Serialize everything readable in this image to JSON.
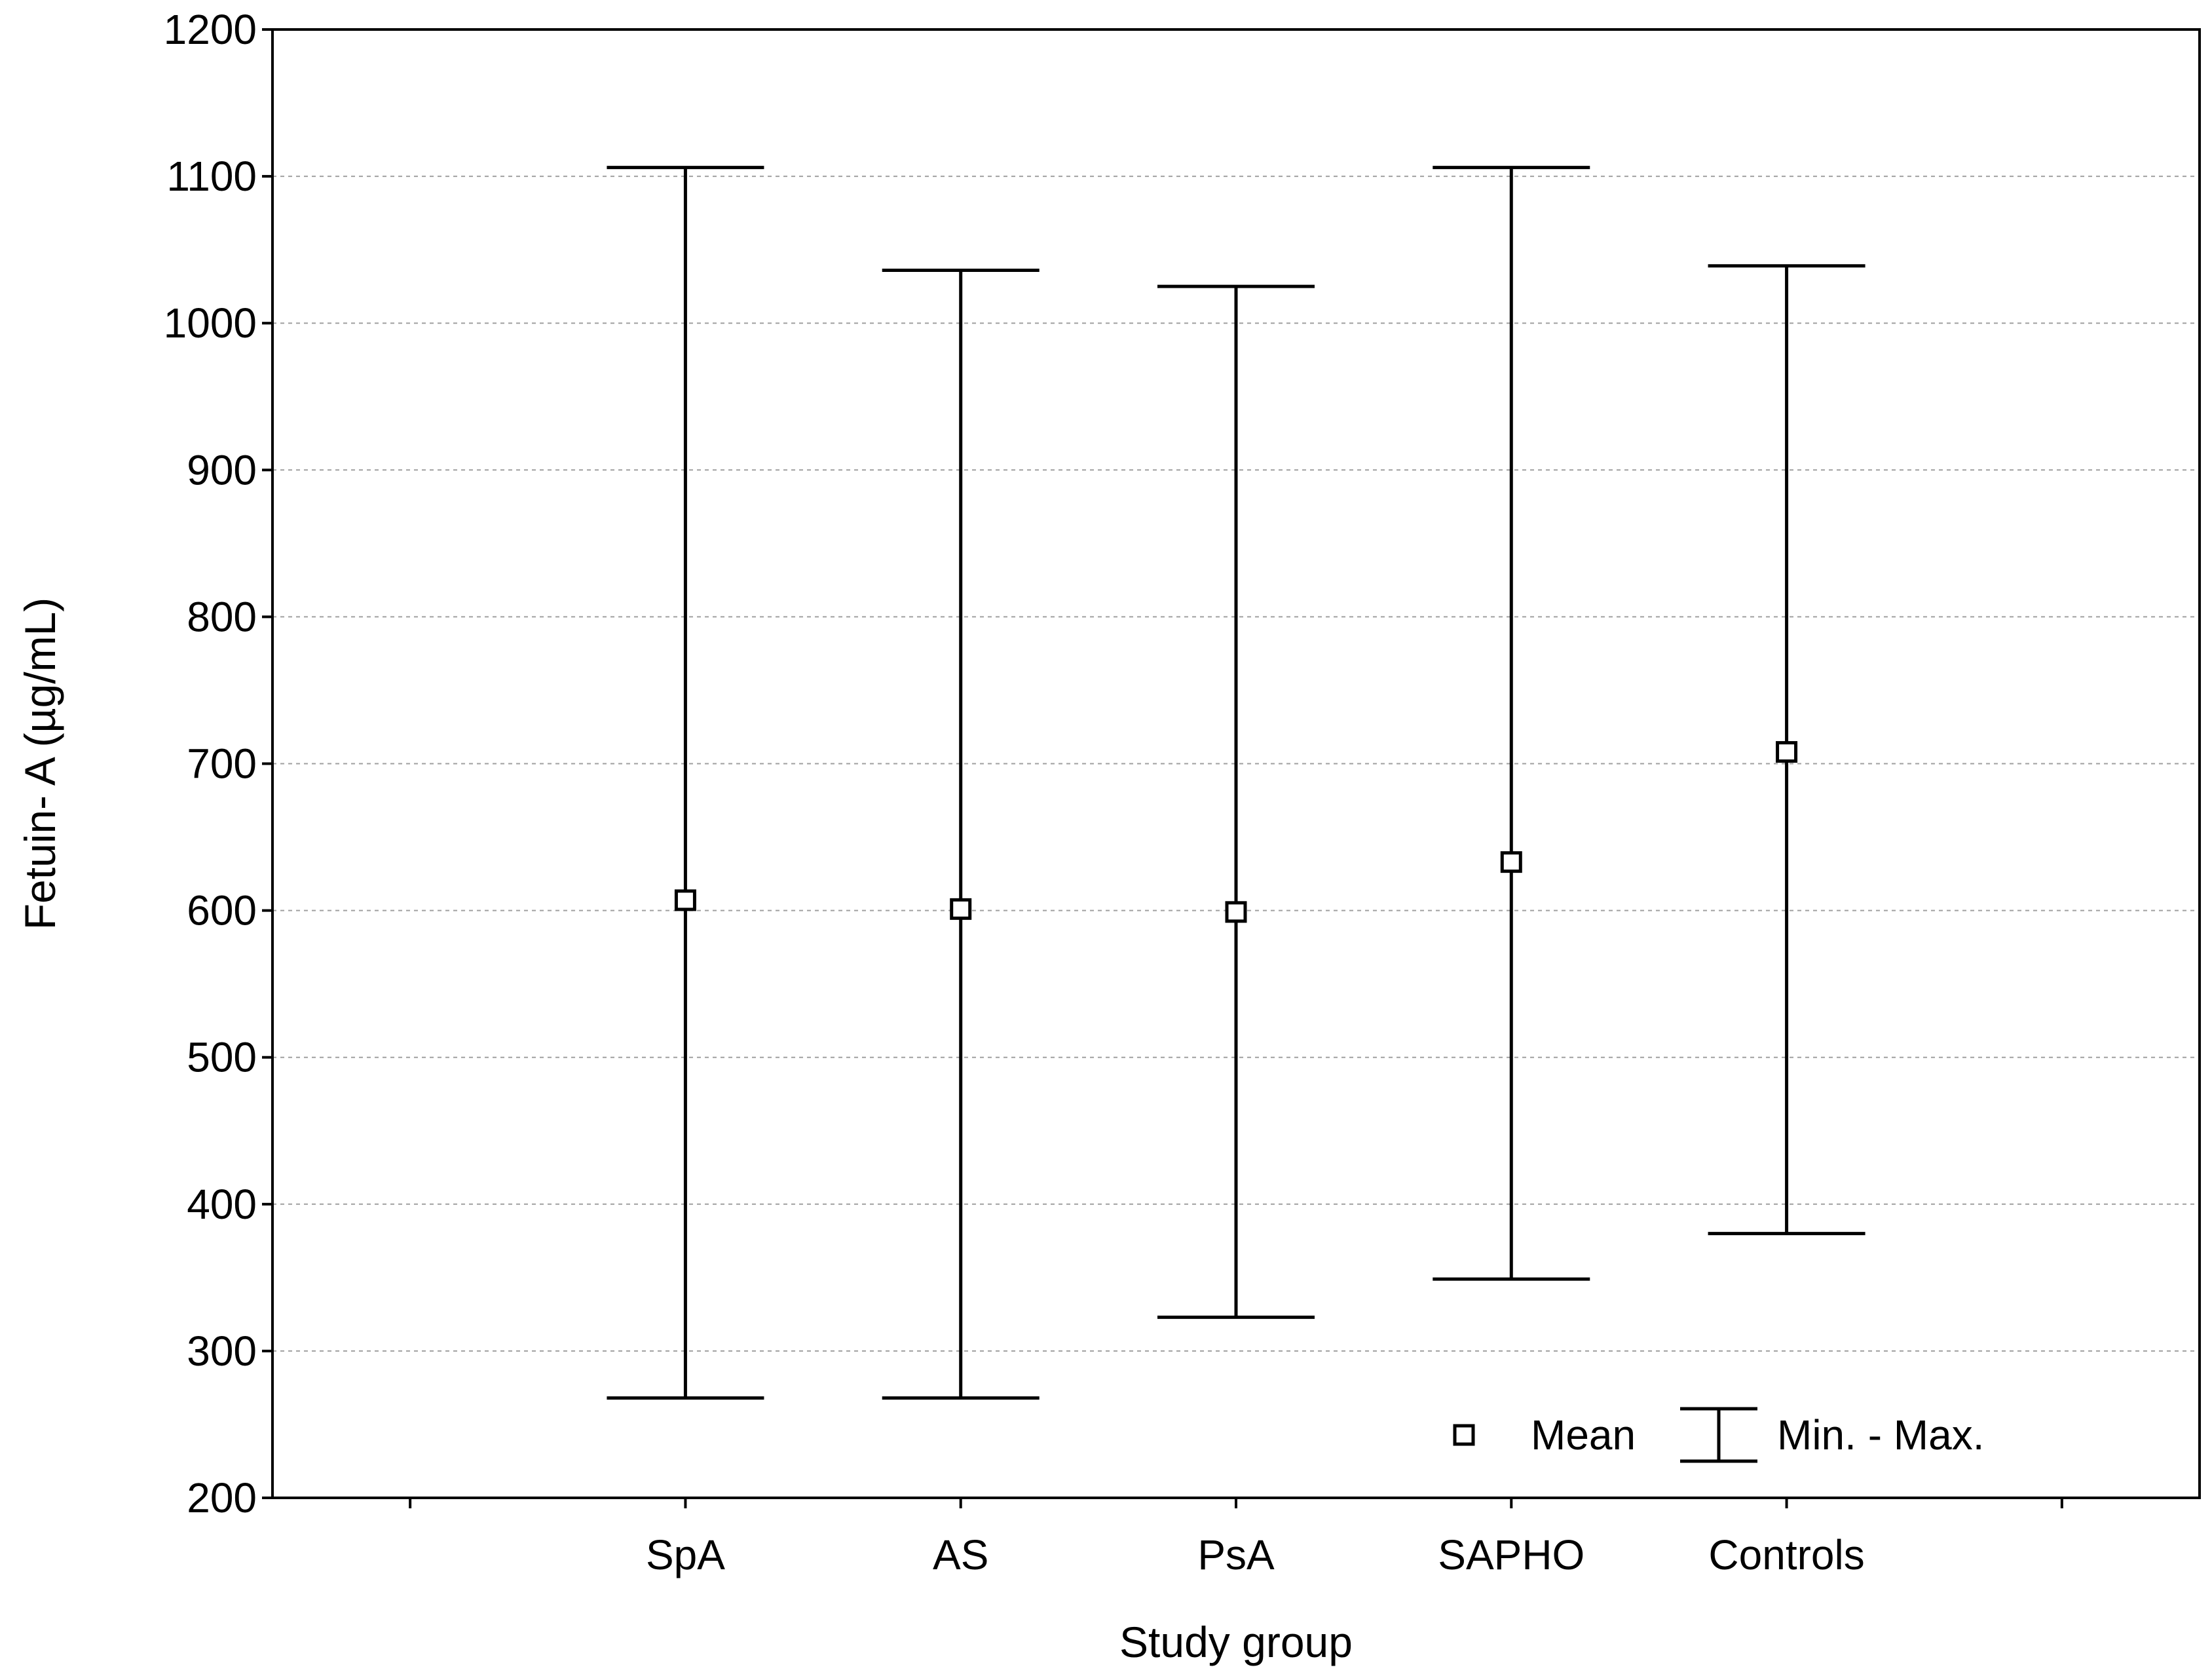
{
  "chart_data": {
    "type": "error-bar",
    "categories": [
      "SpA",
      "AS",
      "PsA",
      "SAPHO",
      "Controls"
    ],
    "mean": [
      607,
      601,
      599,
      633,
      708
    ],
    "min": [
      268,
      268,
      323,
      349,
      380
    ],
    "max": [
      1106,
      1036,
      1025,
      1106,
      1039
    ],
    "xlabel": "Study group",
    "ylabel": "Fetuin- A  (µg/mL)",
    "ylim": [
      200,
      1200
    ],
    "yticks": [
      200,
      300,
      400,
      500,
      600,
      700,
      800,
      900,
      1000,
      1100,
      1200
    ],
    "grid": true,
    "legend": {
      "position": "bottom-right",
      "mean_label": "Mean",
      "range_label": "Min. - Max."
    }
  },
  "colors": {
    "line": "#000000",
    "grid": "#a0a0a0",
    "background": "#ffffff"
  }
}
